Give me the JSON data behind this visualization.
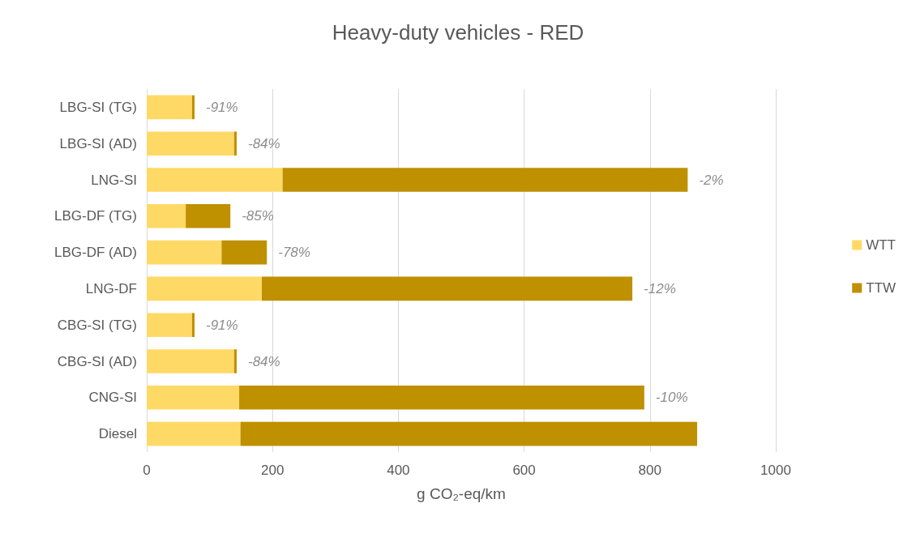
{
  "chart_data": {
    "type": "bar",
    "orientation": "horizontal",
    "stacked": true,
    "title": "Heavy-duty vehicles - RED",
    "xlabel": "g CO₂-eq/km",
    "categories": [
      "LBG-SI (TG)",
      "LBG-SI (AD)",
      "LNG-SI",
      "LBG-DF (TG)",
      "LBG-DF (AD)",
      "LNG-DF",
      "CBG-SI (TG)",
      "CBG-SI (AD)",
      "CNG-SI",
      "Diesel"
    ],
    "series": [
      {
        "name": "WTT",
        "color": "#ffd966",
        "values": [
          72,
          139,
          216,
          62,
          119,
          183,
          72,
          139,
          147,
          149
        ]
      },
      {
        "name": "TTW",
        "color": "#bf9000",
        "values": [
          4,
          4,
          644,
          71,
          72,
          589,
          4,
          4,
          644,
          726
        ]
      }
    ],
    "xlim": [
      0,
      1000
    ],
    "xticks": [
      0,
      200,
      400,
      600,
      800,
      1000
    ],
    "grid": "x",
    "legend": "right",
    "annotations": [
      {
        "text": "-91%",
        "x": 76,
        "y": "LBG-SI (TG)"
      },
      {
        "text": "-84%",
        "x": 143,
        "y": "LBG-SI (AD)"
      },
      {
        "text": "-2%",
        "x": 860,
        "y": "LNG-SI"
      },
      {
        "text": "-85%",
        "x": 133,
        "y": "LBG-DF (TG)"
      },
      {
        "text": "-78%",
        "x": 191,
        "y": "LBG-DF (AD)"
      },
      {
        "text": "-12%",
        "x": 772,
        "y": "LNG-DF"
      },
      {
        "text": "-91%",
        "x": 76,
        "y": "CBG-SI (TG)"
      },
      {
        "text": "-84%",
        "x": 143,
        "y": "CBG-SI (AD)"
      },
      {
        "text": "-10%",
        "x": 791,
        "y": "CNG-SI"
      }
    ]
  }
}
